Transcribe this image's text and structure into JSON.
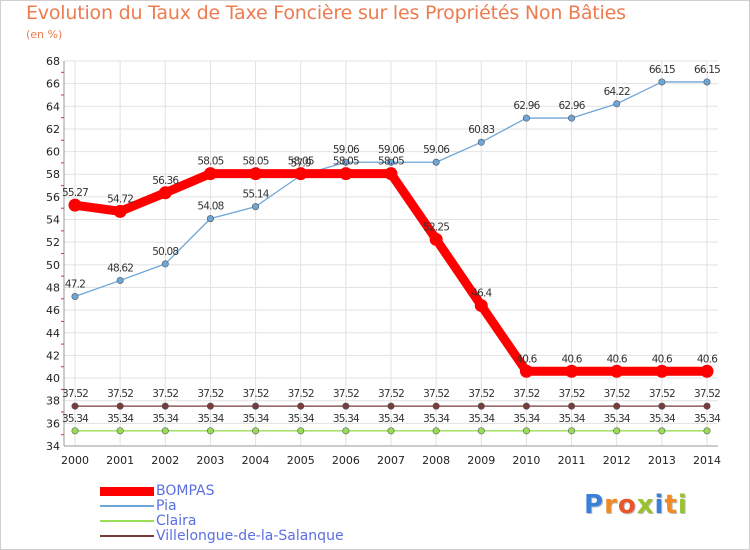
{
  "header": {
    "title": "Evolution du Taux de Taxe Foncière sur les Propriétés Non Bâties",
    "subtitle": "(en %)"
  },
  "logo": {
    "text": "Proxiti",
    "letter_colors": [
      "#3a7fd8",
      "#f08a24",
      "#e8562a",
      "#9ac22f",
      "#3a7fd8",
      "#f08a24",
      "#9ac22f"
    ]
  },
  "chart_data": {
    "type": "line",
    "title": "Evolution du Taux de Taxe Foncière sur les Propriétés Non Bâties",
    "ylabel": "(en %)",
    "x": [
      "2000",
      "2001",
      "2002",
      "2003",
      "2004",
      "2005",
      "2006",
      "2007",
      "2008",
      "2009",
      "2010",
      "2011",
      "2012",
      "2013",
      "2014"
    ],
    "ylim": [
      34,
      68
    ],
    "yticks": [
      34,
      36,
      38,
      40,
      42,
      44,
      46,
      48,
      50,
      52,
      54,
      56,
      58,
      60,
      62,
      64,
      66,
      68
    ],
    "grid": true,
    "legend": "bottom-left",
    "series": [
      {
        "name": "BOMPAS",
        "color": "#ff0000",
        "values": [
          55.27,
          54.72,
          56.36,
          58.05,
          58.05,
          58.05,
          58.05,
          58.05,
          52.25,
          46.4,
          40.6,
          40.6,
          40.6,
          40.6,
          40.6
        ],
        "labels": [
          "55.27",
          "54.72",
          "56.36",
          "58.05",
          "58.05",
          "58.05",
          "58.05",
          "58.05",
          "52.25",
          "46.4",
          "40.6",
          "40.6",
          "40.6",
          "40.6",
          "40.6"
        ]
      },
      {
        "name": "Pia",
        "color": "#6fa6d8",
        "values": [
          47.2,
          48.62,
          50.08,
          54.08,
          55.14,
          57.9,
          59.06,
          59.06,
          59.06,
          60.83,
          62.96,
          62.96,
          64.22,
          66.15,
          66.15
        ],
        "labels": [
          "47.2",
          "48.62",
          "50.08",
          "54.08",
          "55.14",
          "57.9",
          "59.06",
          "59.06",
          "59.06",
          "60.83",
          "62.96",
          "62.96",
          "64.22",
          "66.15",
          "66.15"
        ]
      },
      {
        "name": "Claira",
        "color": "#99dd55",
        "values": [
          35.34,
          35.34,
          35.34,
          35.34,
          35.34,
          35.34,
          35.34,
          35.34,
          35.34,
          35.34,
          35.34,
          35.34,
          35.34,
          35.34,
          35.34
        ],
        "labels": [
          "35.34",
          "35.34",
          "35.34",
          "35.34",
          "35.34",
          "35.34",
          "35.34",
          "35.34",
          "35.34",
          "35.34",
          "35.34",
          "35.34",
          "35.34",
          "35.34",
          "35.34"
        ]
      },
      {
        "name": "Villelongue-de-la-Salanque",
        "color": "#7a3b3b",
        "values": [
          37.52,
          37.52,
          37.52,
          37.52,
          37.52,
          37.52,
          37.52,
          37.52,
          37.52,
          37.52,
          37.52,
          37.52,
          37.52,
          37.52,
          37.52
        ],
        "labels": [
          "37.52",
          "37.52",
          "37.52",
          "37.52",
          "37.52",
          "37.52",
          "37.52",
          "37.52",
          "37.52",
          "37.52",
          "37.52",
          "37.52",
          "37.52",
          "37.52",
          "37.52"
        ]
      }
    ]
  }
}
